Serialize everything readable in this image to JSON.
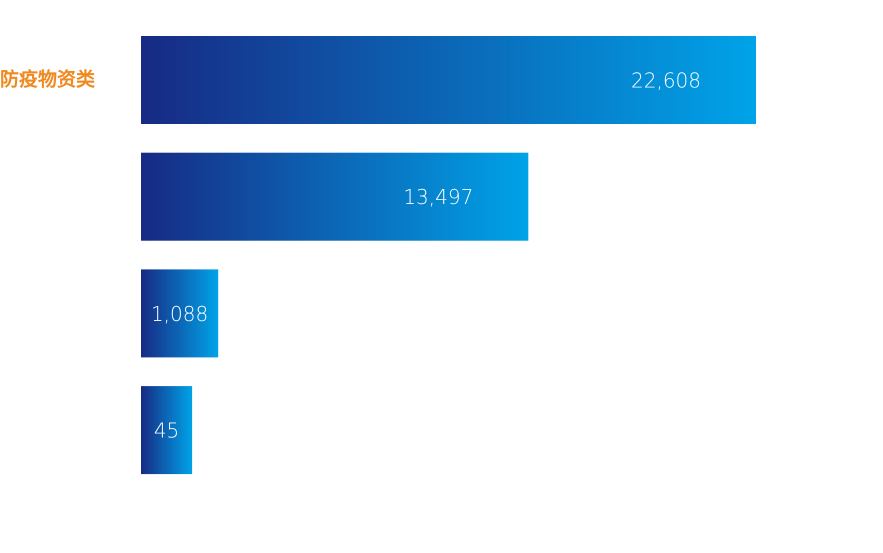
{
  "chart_data": {
    "type": "bar",
    "orientation": "horizontal",
    "categories": [
      "防疫物资类",
      null,
      null,
      null
    ],
    "values": [
      22608,
      13497,
      1088,
      45
    ],
    "value_labels": [
      "22,608",
      "13,497",
      "1,088",
      "45"
    ],
    "color_start": "#172a84",
    "color_end": "#00a3e8",
    "label_color": "#f0891f"
  }
}
